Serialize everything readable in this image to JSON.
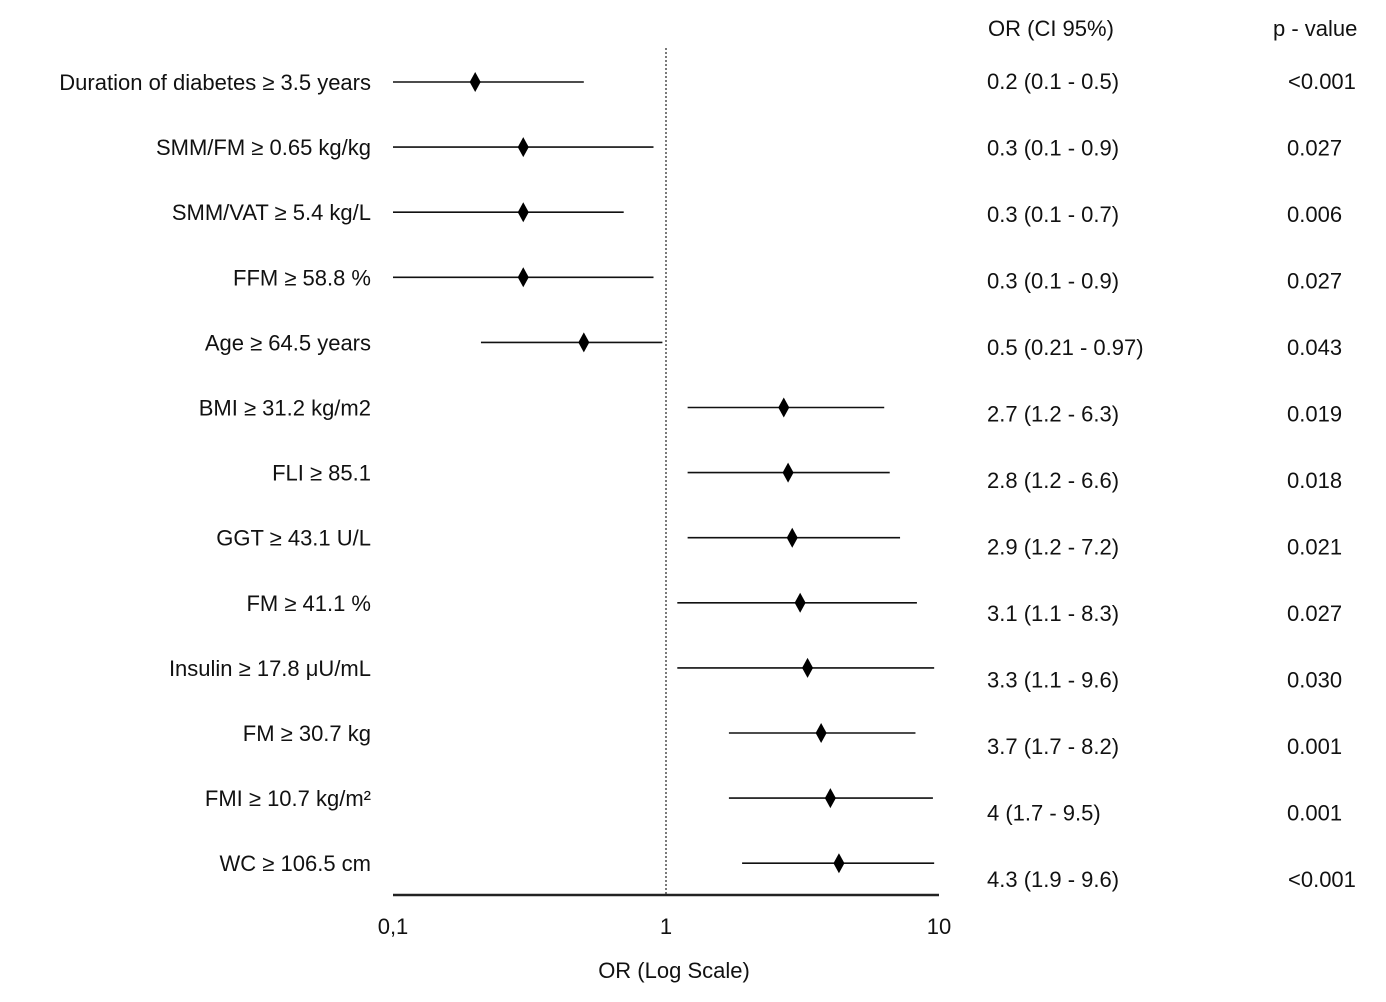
{
  "chart_data": {
    "type": "forest",
    "xlabel": "OR (Log Scale)",
    "xscale": "log",
    "xlim": [
      0.1,
      10
    ],
    "x_ticks": [
      "0,1",
      "1",
      "10"
    ],
    "x_tick_values": [
      0.1,
      1,
      10
    ],
    "reference_line": 1,
    "columns": {
      "or_header": "OR (CI 95%)",
      "p_header": "p - value"
    },
    "rows": [
      {
        "label": "Duration of diabetes ≥ 3.5 years",
        "or": 0.2,
        "low": 0.1,
        "high": 0.5,
        "or_text": "0.2 (0.1 - 0.5)",
        "p": "<0.001"
      },
      {
        "label": "SMM/FM ≥ 0.65 kg/kg",
        "or": 0.3,
        "low": 0.1,
        "high": 0.9,
        "or_text": "0.3 (0.1 - 0.9)",
        "p": "0.027"
      },
      {
        "label": "SMM/VAT ≥ 5.4 kg/L",
        "or": 0.3,
        "low": 0.1,
        "high": 0.7,
        "or_text": "0.3 (0.1 - 0.7)",
        "p": "0.006"
      },
      {
        "label": "FFM ≥ 58.8 %",
        "or": 0.3,
        "low": 0.1,
        "high": 0.9,
        "or_text": "0.3 (0.1 - 0.9)",
        "p": "0.027"
      },
      {
        "label": "Age ≥ 64.5 years",
        "or": 0.5,
        "low": 0.21,
        "high": 0.97,
        "or_text": "0.5 (0.21 - 0.97)",
        "p": "0.043"
      },
      {
        "label": "BMI ≥ 31.2 kg/m2",
        "or": 2.7,
        "low": 1.2,
        "high": 6.3,
        "or_text": "2.7 (1.2 - 6.3)",
        "p": "0.019"
      },
      {
        "label": "FLI ≥ 85.1",
        "or": 2.8,
        "low": 1.2,
        "high": 6.6,
        "or_text": "2.8 (1.2 - 6.6)",
        "p": "0.018"
      },
      {
        "label": "GGT ≥ 43.1 U/L",
        "or": 2.9,
        "low": 1.2,
        "high": 7.2,
        "or_text": "2.9 (1.2 - 7.2)",
        "p": "0.021"
      },
      {
        "label": "FM ≥ 41.1 %",
        "or": 3.1,
        "low": 1.1,
        "high": 8.3,
        "or_text": "3.1 (1.1 - 8.3)",
        "p": "0.027"
      },
      {
        "label": "Insulin ≥ 17.8 μU/mL",
        "or": 3.3,
        "low": 1.1,
        "high": 9.6,
        "or_text": "3.3 (1.1 - 9.6)",
        "p": "0.030"
      },
      {
        "label": "FM ≥ 30.7 kg",
        "or": 3.7,
        "low": 1.7,
        "high": 8.2,
        "or_text": "3.7 (1.7 - 8.2)",
        "p": "0.001"
      },
      {
        "label": "FMI ≥ 10.7 kg/m²",
        "or": 4,
        "low": 1.7,
        "high": 9.5,
        "or_text": "4 (1.7 - 9.5)",
        "p": "0.001"
      },
      {
        "label": "WC ≥ 106.5 cm",
        "or": 4.3,
        "low": 1.9,
        "high": 9.6,
        "or_text": "4.3 (1.9 - 9.6)",
        "p": "<0.001"
      }
    ]
  }
}
